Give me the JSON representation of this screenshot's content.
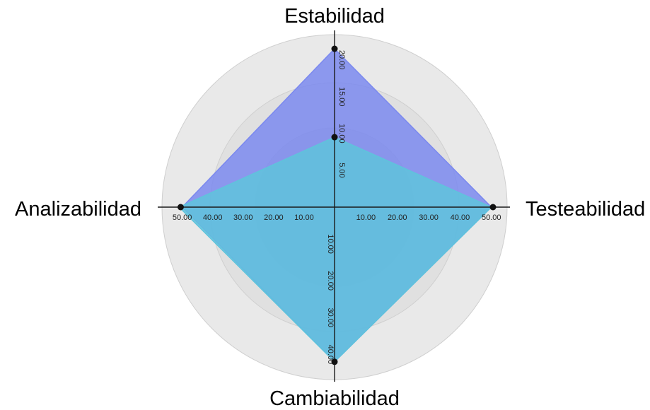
{
  "chart_data": {
    "type": "radar",
    "axes": [
      {
        "label": "Estabilidad",
        "max": 21.5,
        "ticks": [
          5,
          10,
          15,
          20
        ],
        "tick_labels": [
          "5.00",
          "10.00",
          "15.00",
          "20.00"
        ]
      },
      {
        "label": "Testeabilidad",
        "max": 50.5,
        "ticks": [
          10,
          20,
          30,
          40,
          50
        ],
        "tick_labels": [
          "10.00",
          "20.00",
          "30.00",
          "40.00",
          "50.00"
        ]
      },
      {
        "label": "Cambiabilidad",
        "max": 43,
        "ticks": [
          10,
          20,
          30,
          40
        ],
        "tick_labels": [
          "10.00",
          "20.00",
          "30.00",
          "40.00"
        ]
      },
      {
        "label": "Analizabilidad",
        "max": 52,
        "ticks": [
          10,
          20,
          30,
          40,
          50
        ],
        "tick_labels": [
          "10.00",
          "20.00",
          "30.00",
          "40.00",
          "50.00"
        ]
      }
    ],
    "series": [
      {
        "values": [
          21.5,
          50,
          42,
          50
        ],
        "color": "#7b89ef"
      },
      {
        "values": [
          9.5,
          50,
          42,
          51
        ],
        "color": "#5fc3dc"
      }
    ],
    "markers": [
      {
        "axis": 0,
        "value": 21.5
      },
      {
        "axis": 0,
        "value": 9.5
      },
      {
        "axis": 1,
        "value": 50.5
      },
      {
        "axis": 2,
        "value": 42
      },
      {
        "axis": 3,
        "value": 50.5
      }
    ],
    "grid": true,
    "background_rings": [
      "#e9e9e9",
      "#e0e0e0",
      "#d6d6d6"
    ]
  }
}
